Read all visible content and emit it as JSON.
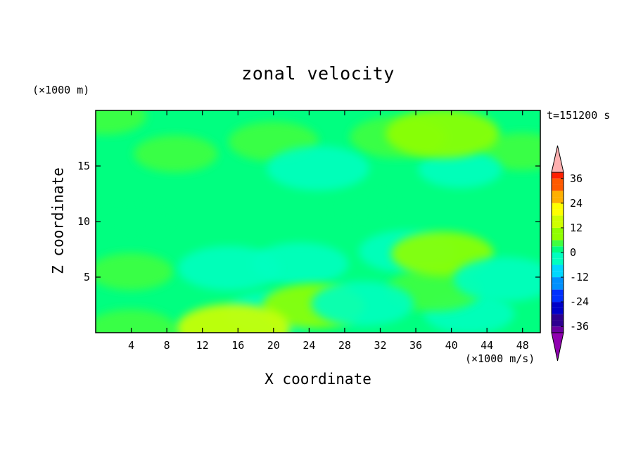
{
  "chart_data": {
    "type": "heatmap",
    "title": "zonal velocity",
    "xlabel": "X coordinate",
    "ylabel": "Z coordinate",
    "x_unit_label": "(×1000 m/s)",
    "y_unit_label": "(×1000 m)",
    "time_label": "t=151200 s",
    "xlim": [
      0,
      50
    ],
    "ylim": [
      0,
      20
    ],
    "x_ticks": [
      4,
      8,
      12,
      16,
      20,
      24,
      28,
      32,
      36,
      40,
      44,
      48
    ],
    "y_ticks": [
      5,
      10,
      15
    ],
    "colorbar": {
      "levels": [
        -42,
        -39,
        -36,
        -33,
        -30,
        -27,
        -24,
        -21,
        -18,
        -15,
        -12,
        -9,
        -6,
        -3,
        0,
        3,
        6,
        9,
        12,
        15,
        18,
        21,
        24,
        27,
        30,
        33,
        36,
        39,
        42
      ],
      "tick_labels": [
        "36",
        "24",
        "12",
        "0",
        "-12",
        "-24",
        "-36"
      ],
      "tick_values": [
        36,
        24,
        12,
        0,
        -12,
        -24,
        -36
      ],
      "extend": "both"
    },
    "field_features": [
      {
        "x": 34,
        "z": 17.6,
        "value": 5
      },
      {
        "x": 39,
        "z": 17.9,
        "value": 9
      },
      {
        "x": 20,
        "z": 17.2,
        "value": 4
      },
      {
        "x": 9,
        "z": 16.1,
        "value": 3
      },
      {
        "x": 48,
        "z": 16.3,
        "value": 3
      },
      {
        "x": 25,
        "z": 14.8,
        "value": -6
      },
      {
        "x": 41,
        "z": 14.7,
        "value": -3
      },
      {
        "x": 4,
        "z": 10.3,
        "value": 2
      },
      {
        "x": 30,
        "z": 11.3,
        "value": 1
      },
      {
        "x": 23,
        "z": 6.2,
        "value": -5
      },
      {
        "x": 15,
        "z": 5.8,
        "value": -6
      },
      {
        "x": 35,
        "z": 7.3,
        "value": -5
      },
      {
        "x": 38,
        "z": 3.8,
        "value": 5
      },
      {
        "x": 39,
        "z": 7.1,
        "value": 6
      },
      {
        "x": 46,
        "z": 4.8,
        "value": -6
      },
      {
        "x": 24.5,
        "z": 2.4,
        "value": 6
      },
      {
        "x": 15.5,
        "z": 0.4,
        "value": 12
      },
      {
        "x": 20,
        "z": 1.8,
        "value": -5
      },
      {
        "x": 4,
        "z": 0.3,
        "value": 4
      },
      {
        "x": 30,
        "z": 2.6,
        "value": -6
      },
      {
        "x": 4,
        "z": 5.5,
        "value": 3
      },
      {
        "x": 42,
        "z": 1.7,
        "value": -4
      },
      {
        "x": 1,
        "z": 19.5,
        "value": 3
      }
    ],
    "grid": false
  }
}
